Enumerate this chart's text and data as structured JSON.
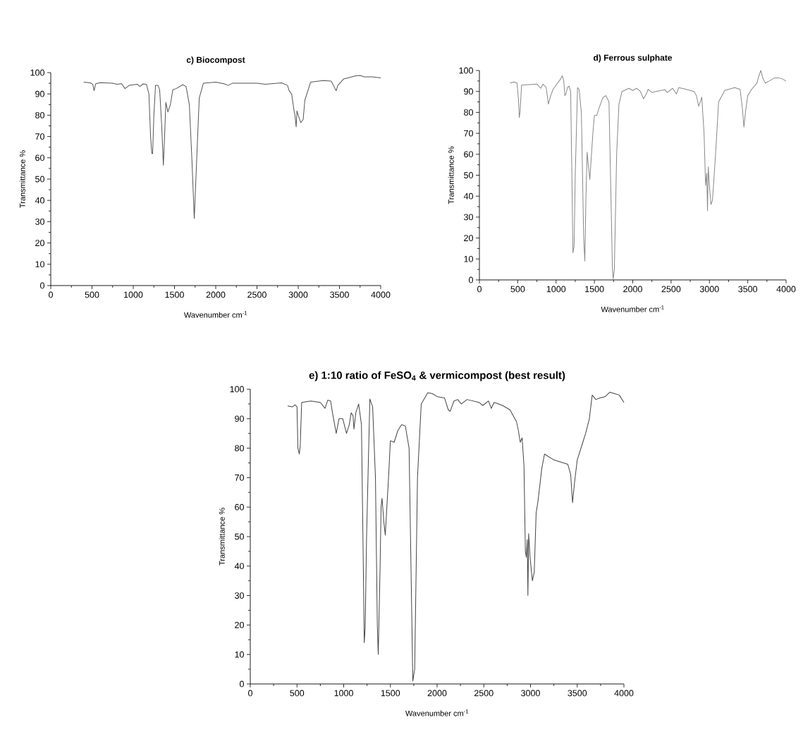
{
  "chart_data": [
    {
      "type": "line",
      "title": "c) Biocompost",
      "xlabel": "Wavenumber cm$^{-1}$",
      "ylabel": "Transmittance %",
      "color": "#555555",
      "xlim": [
        0,
        4000
      ],
      "ylim": [
        0,
        100
      ],
      "xticks": [
        0,
        500,
        1000,
        1500,
        2000,
        2500,
        3000,
        3500,
        4000
      ],
      "yticks": [
        0,
        10,
        20,
        30,
        40,
        50,
        60,
        70,
        80,
        90,
        100
      ],
      "x": [
        400,
        480,
        510,
        525,
        545,
        600,
        750,
        800,
        860,
        900,
        950,
        1050,
        1080,
        1120,
        1160,
        1190,
        1210,
        1225,
        1235,
        1250,
        1270,
        1300,
        1320,
        1345,
        1365,
        1380,
        1395,
        1420,
        1450,
        1480,
        1520,
        1600,
        1640,
        1680,
        1710,
        1740,
        1770,
        1800,
        1850,
        2000,
        2100,
        2150,
        2200,
        2500,
        2600,
        2800,
        2870,
        2890,
        2920,
        2950,
        2960,
        2975,
        2985,
        3000,
        3030,
        3060,
        3080,
        3150,
        3300,
        3400,
        3440,
        3460,
        3480,
        3550,
        3700,
        3750,
        3800,
        3900,
        4000
      ],
      "values": [
        95.5,
        95.2,
        94.5,
        91.5,
        94.8,
        95.3,
        95,
        94.5,
        94.8,
        92.5,
        94,
        94.5,
        93.5,
        94.7,
        94.5,
        90,
        70,
        62,
        62,
        80,
        94,
        94,
        92,
        75,
        56.5,
        70,
        86,
        81.5,
        85,
        92,
        92.5,
        94.3,
        93.5,
        85,
        60,
        31.5,
        60,
        88,
        95,
        95.5,
        94.8,
        94,
        95,
        95,
        94.5,
        95.2,
        94,
        91.5,
        90,
        82,
        80,
        74.5,
        82,
        80,
        76.5,
        78,
        87,
        95.5,
        96.3,
        96,
        93,
        91.5,
        94,
        97,
        98.5,
        98.7,
        98,
        98,
        97.5
      ]
    },
    {
      "type": "line",
      "title": "d) Ferrous sulphate",
      "xlabel": "Wavenumber cm$^{-1}$",
      "ylabel": "Transmittance %",
      "color": "#888888",
      "xlim": [
        0,
        4000
      ],
      "ylim": [
        0,
        100
      ],
      "xticks": [
        0,
        500,
        1000,
        1500,
        2000,
        2500,
        3000,
        3500,
        4000
      ],
      "yticks": [
        0,
        10,
        20,
        30,
        40,
        50,
        60,
        70,
        80,
        90,
        100
      ],
      "x": [
        400,
        450,
        490,
        510,
        520,
        530,
        550,
        650,
        750,
        800,
        830,
        870,
        900,
        930,
        960,
        1000,
        1060,
        1080,
        1100,
        1115,
        1130,
        1150,
        1170,
        1190,
        1210,
        1220,
        1235,
        1250,
        1280,
        1300,
        1330,
        1360,
        1375,
        1390,
        1405,
        1420,
        1440,
        1480,
        1500,
        1530,
        1560,
        1610,
        1650,
        1690,
        1710,
        1735,
        1745,
        1760,
        1790,
        1820,
        1860,
        1950,
        2000,
        2050,
        2100,
        2140,
        2180,
        2200,
        2250,
        2300,
        2420,
        2450,
        2520,
        2570,
        2600,
        2700,
        2800,
        2830,
        2860,
        2890,
        2900,
        2930,
        2950,
        2965,
        2975,
        2985,
        3000,
        3020,
        3040,
        3080,
        3120,
        3200,
        3330,
        3400,
        3430,
        3450,
        3470,
        3500,
        3550,
        3620,
        3650,
        3670,
        3700,
        3730,
        3780,
        3850,
        3900,
        3950,
        4000
      ],
      "values": [
        94,
        94.5,
        94,
        86,
        77.5,
        80,
        93,
        93.3,
        93.5,
        91.5,
        93.5,
        92,
        84,
        88,
        91,
        93,
        96,
        97.5,
        95,
        88,
        89,
        92,
        92.5,
        90,
        40,
        13,
        16,
        50,
        91.8,
        91,
        80,
        20,
        9,
        40,
        61,
        55,
        48,
        70,
        78.5,
        78.5,
        82,
        87,
        88,
        85,
        50,
        5,
        0.5,
        5,
        60,
        84,
        90,
        91.5,
        90.5,
        91.5,
        90,
        86.5,
        89,
        91,
        89.5,
        90,
        90.8,
        89.5,
        91.5,
        88.8,
        91.8,
        91,
        90,
        88,
        83,
        86,
        87.3,
        70,
        45,
        51,
        33,
        54,
        45,
        36,
        38,
        60,
        85,
        90.5,
        91.8,
        91,
        82,
        73,
        80,
        88,
        91,
        94,
        98,
        100,
        96,
        94,
        95,
        96.5,
        96.5,
        96,
        95
      ]
    },
    {
      "type": "line",
      "title": "e) 1:10 ratio of FeSO$_{4}$ & vermicompost  (best result)",
      "xlabel": "Wavenumber cm$^{-1}$",
      "ylabel": "Transmittance %",
      "color": "#444444",
      "xlim": [
        0,
        4000
      ],
      "ylim": [
        0,
        100
      ],
      "xticks": [
        0,
        500,
        1000,
        1500,
        2000,
        2500,
        3000,
        3500,
        4000
      ],
      "yticks": [
        0,
        10,
        20,
        30,
        40,
        50,
        60,
        70,
        80,
        90,
        100
      ],
      "x": [
        400,
        450,
        480,
        500,
        510,
        525,
        535,
        550,
        650,
        750,
        800,
        830,
        860,
        880,
        920,
        950,
        990,
        1030,
        1060,
        1080,
        1100,
        1110,
        1130,
        1160,
        1190,
        1210,
        1220,
        1230,
        1245,
        1280,
        1310,
        1340,
        1360,
        1370,
        1390,
        1400,
        1410,
        1430,
        1445,
        1480,
        1500,
        1540,
        1580,
        1620,
        1660,
        1700,
        1740,
        1760,
        1790,
        1830,
        1900,
        1950,
        2000,
        2080,
        2120,
        2140,
        2180,
        2220,
        2260,
        2320,
        2450,
        2490,
        2550,
        2580,
        2610,
        2700,
        2780,
        2850,
        2870,
        2890,
        2910,
        2930,
        2945,
        2955,
        2965,
        2972,
        2980,
        2995,
        3020,
        3040,
        3060,
        3080,
        3120,
        3150,
        3250,
        3400,
        3430,
        3450,
        3470,
        3500,
        3560,
        3590,
        3630,
        3660,
        3700,
        3740,
        3800,
        3850,
        3900,
        3950,
        4000
      ],
      "values": [
        94.3,
        94,
        94.7,
        94,
        80,
        78,
        81,
        95.5,
        96,
        95.5,
        93.5,
        96.3,
        96,
        92,
        85,
        90,
        90,
        85,
        88,
        92,
        91,
        86.5,
        92,
        95,
        88,
        40,
        14,
        19,
        50,
        96.7,
        94,
        70,
        20,
        10,
        40,
        60,
        63,
        55,
        50.5,
        70,
        82.5,
        82,
        86,
        88,
        87.5,
        80,
        1,
        5,
        70,
        95,
        98.8,
        98.5,
        97.5,
        97,
        93,
        92.5,
        96,
        96.5,
        95,
        96.5,
        95.5,
        94.5,
        96,
        93.5,
        95.5,
        94.5,
        93,
        89,
        86,
        82,
        83.5,
        74,
        45,
        43,
        49,
        30,
        51,
        43,
        35,
        38,
        58,
        62,
        73,
        78,
        76,
        74.5,
        71,
        61.5,
        68,
        76,
        82,
        85,
        90,
        98,
        96.5,
        97,
        97.5,
        99,
        98.5,
        98,
        95.5
      ]
    }
  ]
}
